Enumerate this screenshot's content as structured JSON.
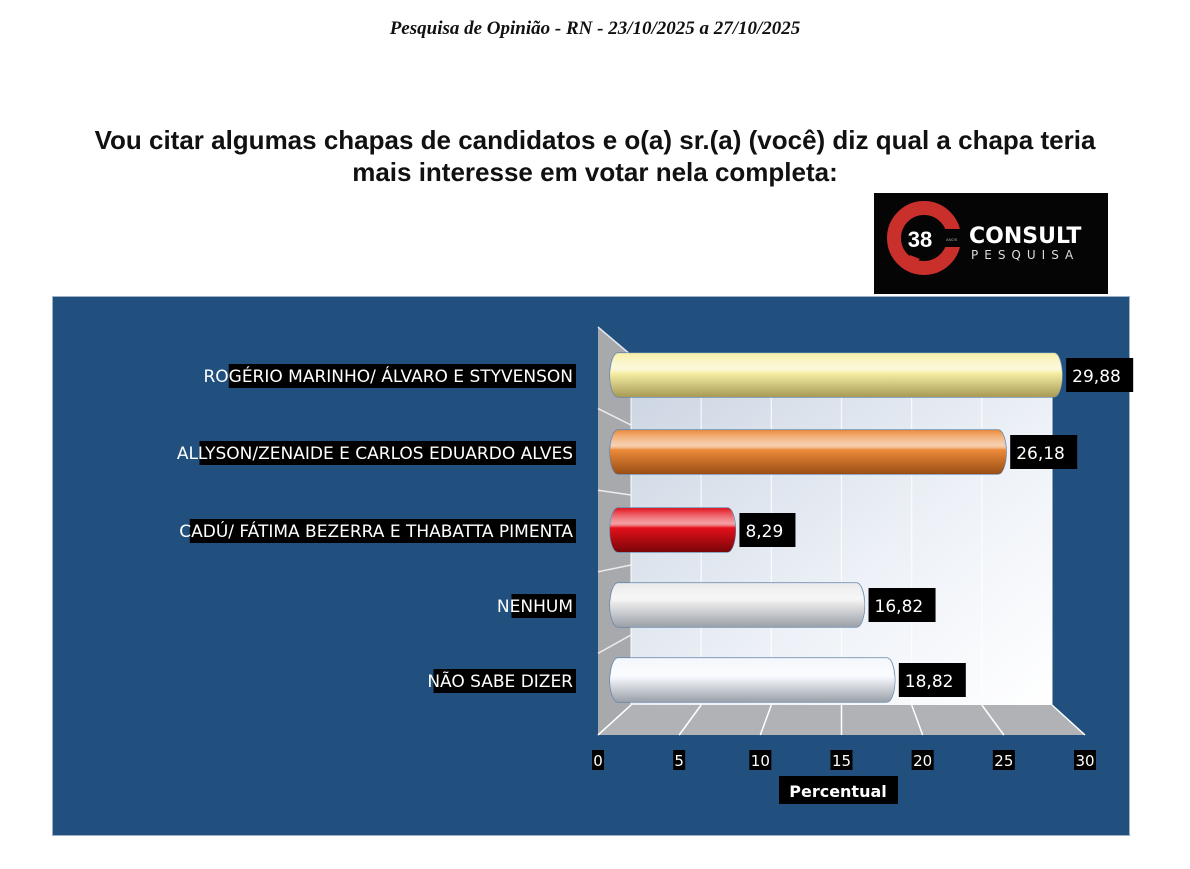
{
  "header": "Pesquisa de Opinião  -   RN  - 23/10/2025   a  27/10/2025",
  "question_line1": "Vou citar algumas chapas de candidatos e o(a) sr.(a) (você) diz qual a chapa teria",
  "question_line2": "mais interesse em votar nela completa:",
  "logo": {
    "number": "38",
    "small": "ANOS",
    "brand": "CONSULT",
    "sub": "PESQUISA"
  },
  "chart_data": {
    "type": "bar",
    "orientation": "horizontal",
    "style": "3d-cylinder",
    "categories": [
      "ROGÉRIO MARINHO/ ÁLVARO E STYVENSON",
      "ALLYSON/ZENAIDE E CARLOS EDUARDO ALVES",
      "CADÚ/ FÁTIMA BEZERRA E THABATTA PIMENTA",
      "NENHUM",
      "NÃO SABE DIZER"
    ],
    "values": [
      29.88,
      26.18,
      8.29,
      16.82,
      18.82
    ],
    "data_labels": [
      "29,88",
      "26,18",
      "8,29",
      "16,82",
      "18,82"
    ],
    "colors": [
      "#f7efa6",
      "#ec8a3a",
      "#e3101a",
      "#e9e9ea",
      "#f3f6fb"
    ],
    "xlabel": "Percentual",
    "xlim": [
      0,
      30
    ],
    "xticks": [
      "0",
      "5",
      "10",
      "15",
      "20",
      "25",
      "30"
    ],
    "grid": true,
    "background": "#21507e"
  }
}
